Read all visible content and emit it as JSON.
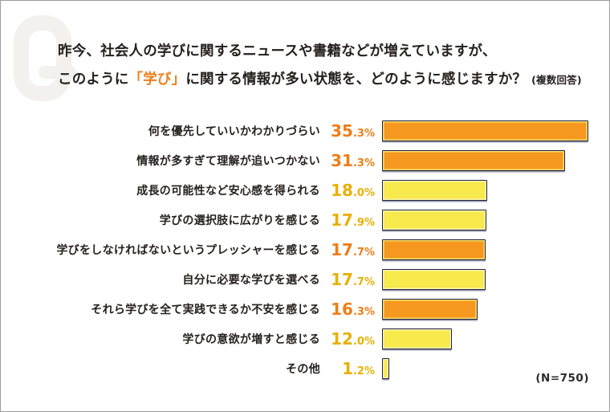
{
  "title": {
    "line1": "昨今、社会人の学びに関するニュースや書籍などが増えていますが、",
    "line2_pre": "このように",
    "line2_highlight": "「学び」",
    "line2_post": "に関する情報が多い状態を、どのように感じますか？",
    "line2_note": "(複数回答)"
  },
  "chart_data": {
    "type": "bar",
    "orientation": "horizontal",
    "unit": "%",
    "multiple_answers": true,
    "categories": [
      "何を優先していいかわかりづらい",
      "情報が多すぎて理解が追いつかない",
      "成長の可能性など安心感を得られる",
      "学びの選択肢に広がりを感じる",
      "学びをしなければないというプレッシャーを感じる",
      "自分に必要な学びを選べる",
      "それら学びを全て実践できるか不安を感じる",
      "学びの意欲が増すと感じる",
      "その他"
    ],
    "values": [
      35.3,
      31.3,
      18.0,
      17.9,
      17.7,
      17.7,
      16.3,
      12.0,
      1.2
    ],
    "bar_colors": [
      "orange",
      "orange",
      "yellow",
      "yellow",
      "orange",
      "yellow",
      "orange",
      "yellow",
      "yellow"
    ],
    "xlim": [
      0,
      36
    ],
    "grid": false,
    "legend": false,
    "sample_label": "(N=750)"
  },
  "footer": {
    "sample": "(N=750)"
  },
  "colors": {
    "orange_bar": "#F6981F",
    "yellow_bar": "#F8E94D",
    "bar_border": "#1F2145",
    "orange_value_text": "#EE7D17",
    "amber_value_text": "#E8B004",
    "title_highlight": "#EE7D17",
    "ink": "#25211E",
    "watermark": "#F2F1ED",
    "frame_border": "#9B9B9B"
  }
}
